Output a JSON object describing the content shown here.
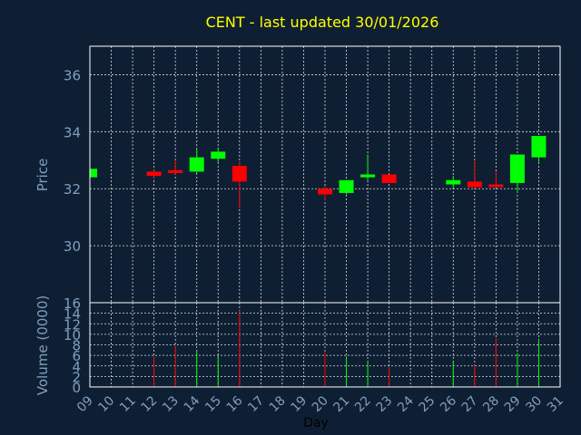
{
  "chart_data": {
    "type": "candlestick",
    "title": "CENT - last updated 30/01/2026",
    "price_label": "Price",
    "volume_label": "Volume (0000)",
    "xlabel": "Day",
    "days": [
      "09",
      "10",
      "11",
      "12",
      "13",
      "14",
      "15",
      "16",
      "17",
      "18",
      "19",
      "20",
      "21",
      "22",
      "23",
      "24",
      "25",
      "26",
      "27",
      "28",
      "29",
      "30",
      "31"
    ],
    "price_ticks": [
      "30",
      "32",
      "34",
      "36"
    ],
    "volume_ticks": [
      "0",
      "2",
      "4",
      "6",
      "8",
      "10",
      "12",
      "14",
      "16"
    ],
    "price_ylim": [
      28.0,
      37.0
    ],
    "volume_ylim": [
      0,
      16
    ],
    "colors": {
      "up": "#00ff00",
      "down": "#ff0000",
      "background": "#0f1f33",
      "title": "#ffff00",
      "axis_text": "#7f9fbf"
    },
    "candles": [
      {
        "day": "09",
        "open": 32.4,
        "close": 32.7,
        "high": 32.7,
        "low": 32.4,
        "volume": 0
      },
      {
        "day": "12",
        "open": 32.6,
        "close": 32.45,
        "high": 32.65,
        "low": 32.35,
        "volume": 5.8
      },
      {
        "day": "13",
        "open": 32.65,
        "close": 32.55,
        "high": 33.0,
        "low": 32.5,
        "volume": 7.8
      },
      {
        "day": "14",
        "open": 32.6,
        "close": 33.1,
        "high": 33.4,
        "low": 32.55,
        "volume": 6.9
      },
      {
        "day": "15",
        "open": 33.05,
        "close": 33.3,
        "high": 33.45,
        "low": 32.9,
        "volume": 5.9
      },
      {
        "day": "16",
        "open": 32.8,
        "close": 32.25,
        "high": 32.95,
        "low": 31.3,
        "volume": 14.5
      },
      {
        "day": "20",
        "open": 32.0,
        "close": 31.8,
        "high": 32.1,
        "low": 31.6,
        "volume": 6.6
      },
      {
        "day": "21",
        "open": 31.85,
        "close": 32.3,
        "high": 32.3,
        "low": 31.8,
        "volume": 5.8
      },
      {
        "day": "22",
        "open": 32.4,
        "close": 32.5,
        "high": 33.2,
        "low": 32.3,
        "volume": 4.8
      },
      {
        "day": "23",
        "open": 32.5,
        "close": 32.2,
        "high": 32.5,
        "low": 32.2,
        "volume": 3.8
      },
      {
        "day": "26",
        "open": 32.15,
        "close": 32.3,
        "high": 32.45,
        "low": 32.0,
        "volume": 4.8
      },
      {
        "day": "27",
        "open": 32.25,
        "close": 32.05,
        "high": 33.0,
        "low": 32.0,
        "volume": 4.2
      },
      {
        "day": "28",
        "open": 32.15,
        "close": 32.1,
        "high": 32.6,
        "low": 32.05,
        "volume": 9.2
      },
      {
        "day": "29",
        "open": 32.2,
        "close": 33.2,
        "high": 33.2,
        "low": 31.85,
        "volume": 6.4
      },
      {
        "day": "30",
        "open": 33.1,
        "close": 33.85,
        "high": 33.85,
        "low": 32.9,
        "volume": 9.0
      }
    ]
  }
}
